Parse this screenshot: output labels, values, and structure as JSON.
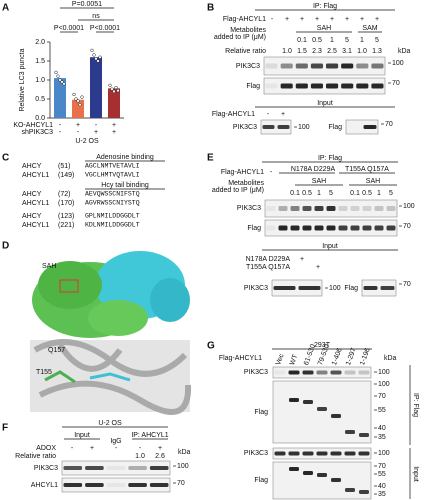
{
  "chart_data": {
    "type": "bar",
    "ylabel": "Relative LC3 puncta",
    "categories": [
      null,
      null,
      null,
      null
    ],
    "values": [
      1.05,
      0.48,
      1.6,
      0.78
    ],
    "colors": [
      "#4a86c8",
      "#e8704a",
      "#2b3a8c",
      "#a5302f"
    ],
    "points": [
      [
        1.2,
        1.1,
        1.0,
        0.95,
        0.9
      ],
      [
        0.62,
        0.5,
        0.45,
        0.35,
        0.55
      ],
      [
        1.78,
        1.66,
        1.56,
        1.5,
        1.6
      ],
      [
        0.86,
        0.76,
        0.7,
        0.8,
        0.72
      ]
    ],
    "ylim": [
      0,
      2
    ],
    "yticks": [
      {
        "value": 0,
        "label": "0.0"
      },
      {
        "value": 0.5,
        "label": "0.5"
      },
      {
        "value": 1,
        "label": "1.0"
      },
      {
        "value": 1.5,
        "label": "1.5"
      },
      {
        "value": 2,
        "label": "2.0"
      }
    ],
    "rows": [
      {
        "name": "KO-AHCYL1",
        "signs": [
          "-",
          "+",
          "-",
          "+"
        ]
      },
      {
        "name": "shPIK3C3",
        "signs": [
          "-",
          "-",
          "+",
          "+"
        ]
      }
    ],
    "xlabel": "U-2 OS",
    "annotations": [
      "P=0.0051",
      "ns",
      "P<0.0001",
      "P<0.0001"
    ]
  },
  "panel_labels": [
    "A",
    "B",
    "C",
    "D",
    "E",
    "F",
    "G"
  ],
  "b": {
    "header": "IP: Flag",
    "construct": "Flag-AHCYL1",
    "lanes": [
      "-",
      "+",
      "+",
      "+",
      "+",
      "+",
      "+",
      "+"
    ],
    "metabolite_label": [
      "Metabolites",
      "added to IP (μM)"
    ],
    "groups": [
      {
        "name": "SAH",
        "doses": [
          "0.1",
          "0.5",
          "1",
          "5"
        ]
      },
      {
        "name": "SAM",
        "doses": [
          "1",
          "5"
        ]
      }
    ],
    "ratio_label": "Relative ratio",
    "ratios": [
      "1.0",
      "1.5",
      "2.3",
      "2.5",
      "3.1",
      "1.0",
      "1.3"
    ],
    "kda": "kDa",
    "blots": [
      {
        "name": "PIK3C3",
        "marker": "100"
      },
      {
        "name": "Flag",
        "marker": "70"
      }
    ],
    "input": {
      "header": "Input",
      "construct": "Flag-AHCYL1",
      "lanes": [
        "-",
        "+"
      ],
      "blots": [
        {
          "name": "PIK3C3",
          "marker": "100"
        },
        {
          "name": "Flag",
          "marker": "70"
        }
      ]
    }
  },
  "c": {
    "motifs": [
      {
        "title": "Adenosine binding",
        "rows": [
          {
            "protein": "AHCY",
            "position": "(51)",
            "sequence": "AGCLNMTVETAVLI"
          },
          {
            "protein": "AHCYL1",
            "position": "(149)",
            "sequence": "VGCLHMTVQTAVLI"
          }
        ]
      },
      {
        "title": "Hcy tail binding",
        "rows": [
          {
            "protein": "AHCY",
            "position": "(72)",
            "sequence": "AEVQWSSCNIFSTQ"
          },
          {
            "protein": "AHCYL1",
            "position": "(170)",
            "sequence": "AGVRWSSCNIYSTQ"
          },
          {
            "protein": "AHCY",
            "position": "(123)",
            "sequence": "GPLNMILDDGGDLT"
          },
          {
            "protein": "AHCYL1",
            "position": "(221)",
            "sequence": "KDLNMILDDGGDLT"
          }
        ]
      }
    ]
  },
  "d": {
    "labels": [
      "SAH",
      "Q157",
      "T155"
    ]
  },
  "e": {
    "header": "IP: Flag",
    "construct": "Flag-AHCYL1",
    "control": "-",
    "mutants": [
      "N178A D229A",
      "T155A Q157A"
    ],
    "metabolite_label": [
      "Metabolites",
      "added to IP (μM)"
    ],
    "group": "SAH",
    "doses": [
      "0.1",
      "0.5",
      "1",
      "5"
    ],
    "blots": [
      {
        "name": "PIK3C3",
        "marker": "100"
      },
      {
        "name": "Flag",
        "marker": "70"
      }
    ],
    "input": {
      "header": "Input",
      "rows": [
        {
          "name": "N178A D229A",
          "sign": "+"
        },
        {
          "name": "T155A Q157A",
          "sign": "+"
        }
      ],
      "blots": [
        {
          "name": "PIK3C3",
          "marker": "100"
        },
        {
          "name": "Flag",
          "marker": "70"
        }
      ]
    }
  },
  "f": {
    "cell_line": "U-2 OS",
    "groups": [
      "Input",
      "IgG",
      "IP: AHCYL1"
    ],
    "treatment": "ADOX",
    "signs": [
      "-",
      "+",
      "-",
      "-",
      "+"
    ],
    "ratio_label": "Relative ratio",
    "ratios": [
      "1.0",
      "2.6"
    ],
    "kda": "kDa",
    "blots": [
      {
        "name": "PIK3C3",
        "marker": "100"
      },
      {
        "name": "AHCYL1",
        "marker": "70"
      }
    ]
  },
  "g": {
    "cell_line": "293T",
    "construct": "Flag-AHCYL1",
    "lanes": [
      "Vec",
      "WT",
      "61-530",
      "79-530",
      "1-406",
      "1-297",
      "1-196"
    ],
    "kda": "kDa",
    "ip_label": "IP: Flag",
    "input_label": "Input",
    "ip_blots": [
      {
        "name": "PIK3C3",
        "markers": [
          "100"
        ]
      },
      {
        "name": "Flag",
        "markers": [
          "100",
          "70",
          "55",
          "40",
          "35"
        ]
      }
    ],
    "input_blots": [
      {
        "name": "PIK3C3",
        "markers": [
          "100"
        ]
      },
      {
        "name": "Flag",
        "markers": [
          "70",
          "55",
          "40",
          "35"
        ]
      }
    ]
  }
}
